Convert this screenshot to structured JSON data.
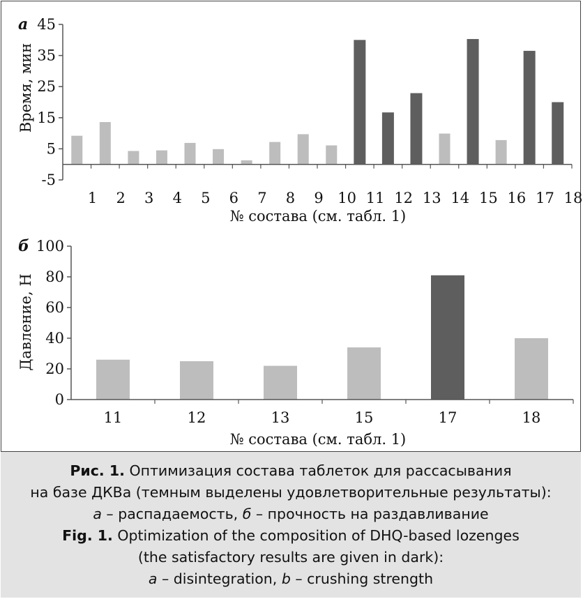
{
  "chart_data": [
    {
      "type": "bar",
      "panel_label": "а",
      "ylabel": "Время, мин",
      "xlabel": "№ состава (см. табл. 1)",
      "ylim": [
        -5,
        45
      ],
      "yticks": [
        "-5",
        "5",
        "15",
        "25",
        "35",
        "45"
      ],
      "categories": [
        "1",
        "2",
        "3",
        "4",
        "5",
        "6",
        "7",
        "8",
        "9",
        "10",
        "11",
        "12",
        "13",
        "14",
        "15",
        "16",
        "17",
        "18"
      ],
      "values": [
        9.2,
        13.6,
        4.3,
        4.5,
        6.9,
        4.9,
        1.3,
        7.2,
        9.7,
        6.1,
        40.0,
        16.7,
        22.9,
        9.9,
        40.3,
        7.8,
        36.5,
        20.0
      ],
      "highlighted": [
        false,
        false,
        false,
        false,
        false,
        false,
        false,
        false,
        false,
        false,
        true,
        true,
        true,
        false,
        true,
        false,
        true,
        true
      ]
    },
    {
      "type": "bar",
      "panel_label": "б",
      "ylabel": "Давление, Н",
      "xlabel": "№ состава (см. табл. 1)",
      "ylim": [
        0,
        100
      ],
      "yticks": [
        "0",
        "20",
        "40",
        "60",
        "80",
        "100"
      ],
      "categories": [
        "11",
        "12",
        "13",
        "15",
        "17",
        "18"
      ],
      "values": [
        26,
        25,
        22,
        34,
        81,
        40
      ],
      "highlighted": [
        false,
        false,
        false,
        false,
        true,
        false
      ]
    }
  ],
  "colors": {
    "light_bar": "#bdbdbd",
    "dark_bar": "#5e5e5e",
    "axis": "#555555",
    "caption_bg": "#e3e3e3"
  },
  "caption": {
    "ru_label": "Рис. 1.",
    "ru_line1": "Оптимизация состава таблеток для рассасывания",
    "ru_line2": "на базе ДКВа (темным выделены удовлетворительные результаты):",
    "ru_a_label": "а",
    "ru_a_text": "– распадаемость,",
    "ru_b_label": "б",
    "ru_b_text": "– прочность на раздавливание",
    "en_label": "Fig. 1.",
    "en_line1": "Optimization of the composition of DHQ-based lozenges",
    "en_line2": "(the satisfactory results are given in dark):",
    "en_a_label": "a",
    "en_a_text": "– disintegration,",
    "en_b_label": "b",
    "en_b_text": "– crushing strength"
  }
}
